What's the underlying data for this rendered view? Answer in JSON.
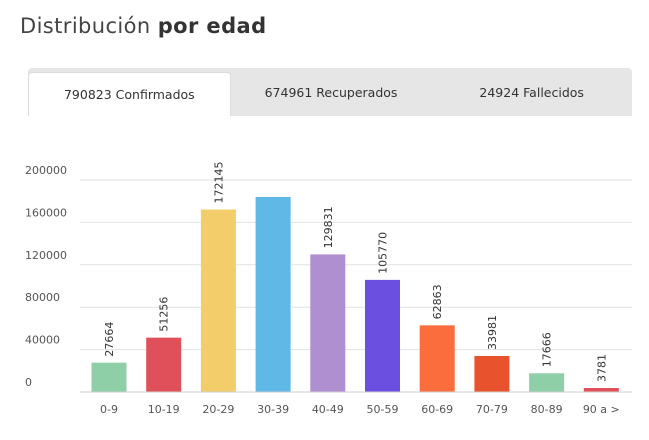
{
  "heading": {
    "regular": "Distribución ",
    "bold": "por edad"
  },
  "tabs": [
    {
      "label": "790823 Confirmados",
      "active": true
    },
    {
      "label": "674961 Recuperados",
      "active": false
    },
    {
      "label": "24924 Fallecidos",
      "active": false
    }
  ],
  "chart_data": {
    "type": "bar",
    "categories": [
      "0-9",
      "10-19",
      "20-29",
      "30-39",
      "40-49",
      "50-59",
      "60-69",
      "70-79",
      "80-89",
      "90 a >"
    ],
    "values": [
      27664,
      51256,
      172145,
      184000,
      129831,
      105770,
      62863,
      33981,
      17666,
      3781
    ],
    "data_labels": [
      "27664",
      "51256",
      "172145",
      "",
      "129831",
      "105770",
      "62863",
      "33981",
      "17666",
      "3781"
    ],
    "colors": [
      "#8fcfa8",
      "#e0505a",
      "#f2cd6a",
      "#5fb8e6",
      "#b08fd1",
      "#6b4fe0",
      "#fb6d3c",
      "#e8532e",
      "#8fcfa8",
      "#e0505a"
    ],
    "yticks": [
      0,
      40000,
      80000,
      120000,
      160000,
      200000
    ],
    "ytick_labels": [
      "0",
      "40000",
      "80000",
      "120000",
      "160000",
      "200000"
    ],
    "ylim": [
      0,
      200000
    ],
    "grid": true
  }
}
